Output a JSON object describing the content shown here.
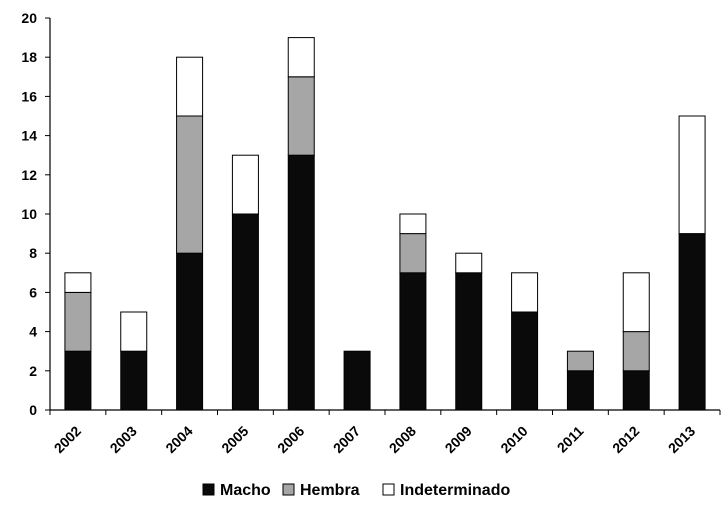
{
  "chart_data": {
    "type": "bar",
    "stacked": true,
    "categories": [
      "2002",
      "2003",
      "2004",
      "2005",
      "2006",
      "2007",
      "2008",
      "2009",
      "2010",
      "2011",
      "2012",
      "2013"
    ],
    "series": [
      {
        "name": "Macho",
        "color": "#0a0a0a",
        "values": [
          3,
          3,
          8,
          10,
          13,
          3,
          7,
          7,
          5,
          2,
          2,
          9
        ]
      },
      {
        "name": "Hembra",
        "color": "#a6a6a6",
        "values": [
          3,
          0,
          7,
          0,
          4,
          0,
          2,
          0,
          0,
          1,
          2,
          0
        ]
      },
      {
        "name": "Indeterminado",
        "color": "#ffffff",
        "values": [
          1,
          2,
          3,
          3,
          2,
          0,
          1,
          1,
          2,
          0,
          3,
          6
        ]
      }
    ],
    "ylim": [
      0,
      20
    ],
    "yticks": [
      0,
      2,
      4,
      6,
      8,
      10,
      12,
      14,
      16,
      18,
      20
    ],
    "grid": false,
    "legend": "bottom",
    "xlabel": "",
    "ylabel": ""
  }
}
